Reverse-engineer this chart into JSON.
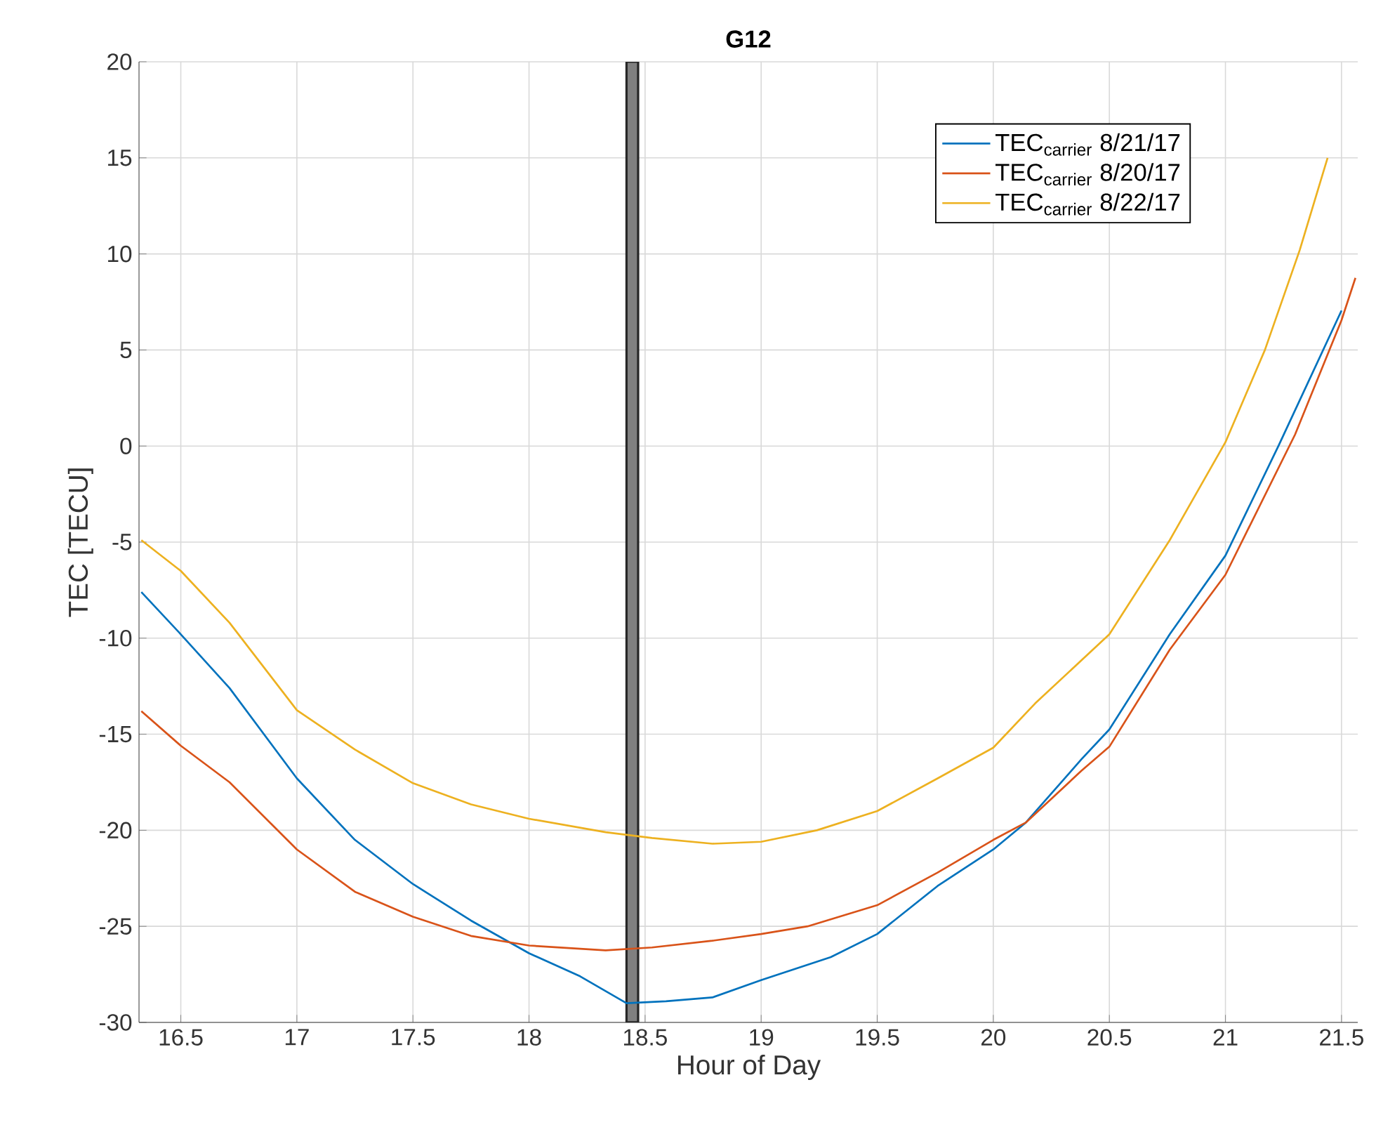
{
  "chart_data": {
    "type": "line",
    "title": "G12",
    "xlabel": "Hour of Day",
    "ylabel": "TEC [TECU]",
    "xlim": [
      16.32,
      21.57
    ],
    "ylim": [
      -30,
      20
    ],
    "xticks": [
      16.5,
      17,
      17.5,
      18,
      18.5,
      19,
      19.5,
      20,
      20.5,
      21,
      21.5
    ],
    "yticks": [
      -30,
      -25,
      -20,
      -15,
      -10,
      -5,
      0,
      5,
      10,
      15,
      20
    ],
    "grid": true,
    "legend": "top right",
    "line_style": "solid",
    "bands": [
      {
        "axis": "x",
        "from": 18.42,
        "to": 18.47,
        "color": "#808080"
      }
    ],
    "series": [
      {
        "name": "TEC$_{carrier}$ 8/21/17",
        "color": "#0072bd",
        "x": [
          16.33,
          16.5,
          16.71,
          17,
          17.25,
          17.5,
          17.75,
          18,
          18.22,
          18.42,
          18.59,
          18.79,
          19,
          19.3,
          19.5,
          19.76,
          20,
          20.14,
          20.38,
          20.5,
          20.76,
          21,
          21.23,
          21.5
        ],
        "values": [
          -7.6,
          -9.8,
          -12.6,
          -17.3,
          -20.5,
          -22.8,
          -24.7,
          -26.4,
          -27.6,
          -29.0,
          -28.9,
          -28.7,
          -27.8,
          -26.6,
          -25.4,
          -22.9,
          -21.0,
          -19.6,
          -16.3,
          -14.75,
          -9.8,
          -5.7,
          0.05,
          7.05
        ]
      },
      {
        "name": "TEC$_{carrier}$ 8/20/17",
        "color": "#d95319",
        "x": [
          16.33,
          16.5,
          16.71,
          17,
          17.25,
          17.5,
          17.75,
          18,
          18.33,
          18.53,
          18.79,
          19,
          19.2,
          19.5,
          19.76,
          20,
          20.14,
          20.38,
          20.5,
          20.76,
          21,
          21.3,
          21.5,
          21.56
        ],
        "values": [
          -13.8,
          -15.6,
          -17.5,
          -21.0,
          -23.2,
          -24.5,
          -25.5,
          -26.0,
          -26.25,
          -26.1,
          -25.75,
          -25.4,
          -25.0,
          -23.9,
          -22.2,
          -20.5,
          -19.6,
          -16.9,
          -15.65,
          -10.6,
          -6.7,
          0.6,
          6.55,
          8.75
        ]
      },
      {
        "name": "TEC$_{carrier}$ 8/22/17",
        "color": "#edb120",
        "x": [
          16.33,
          16.5,
          16.71,
          17,
          17.25,
          17.5,
          17.75,
          18,
          18.33,
          18.53,
          18.79,
          19,
          19.24,
          19.5,
          19.76,
          20,
          20.18,
          20.5,
          20.76,
          21,
          21.17,
          21.32,
          21.44
        ],
        "values": [
          -4.9,
          -6.5,
          -9.2,
          -13.75,
          -15.8,
          -17.55,
          -18.65,
          -19.4,
          -20.1,
          -20.4,
          -20.7,
          -20.6,
          -20.0,
          -19.0,
          -17.3,
          -15.7,
          -13.4,
          -9.8,
          -4.9,
          0.2,
          5.0,
          10.2,
          15.0
        ]
      }
    ]
  }
}
